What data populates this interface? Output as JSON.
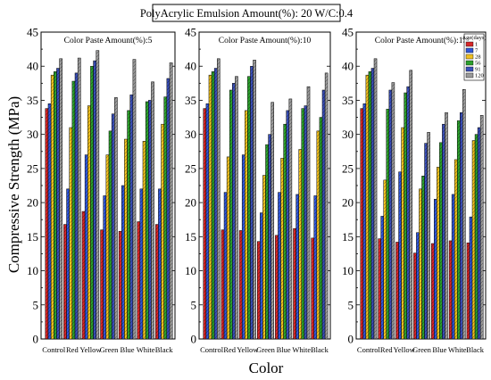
{
  "title": "PolyAcrylic Emulsion Amount(%):  20  W/C:0.4",
  "ylabel": "Compressive Strength (MPa)",
  "xlabel": "Color",
  "legend_title": "Age(days)",
  "colors": {
    "1": "#d62728",
    "7": "#2f56d8",
    "28": "#f0c020",
    "56": "#2ca02c",
    "91": "#3a4fb8",
    "120": "#9a9a9a"
  },
  "chart_data": [
    {
      "type": "bar",
      "title": "Color Paste Amount(%):5",
      "categories": [
        "Control",
        "Red",
        "Yellow",
        "Green",
        "Blue",
        "White",
        "Black"
      ],
      "ylim": [
        0,
        45
      ],
      "yticks": [
        0,
        5,
        10,
        15,
        20,
        25,
        30,
        35,
        40,
        45
      ],
      "series": [
        {
          "name": "1",
          "values": [
            33.8,
            16.8,
            18.7,
            16.0,
            15.8,
            17.2,
            16.8
          ]
        },
        {
          "name": "7",
          "values": [
            34.5,
            22.0,
            27.0,
            21.0,
            22.5,
            22.0,
            22.0
          ]
        },
        {
          "name": "28",
          "values": [
            38.7,
            31.0,
            34.2,
            27.0,
            29.3,
            29.0,
            31.5
          ]
        },
        {
          "name": "56",
          "values": [
            39.2,
            37.8,
            40.0,
            30.5,
            33.5,
            34.8,
            35.5
          ]
        },
        {
          "name": "91",
          "values": [
            39.7,
            39.0,
            40.8,
            33.0,
            35.8,
            35.0,
            38.2
          ]
        },
        {
          "name": "120",
          "values": [
            41.1,
            41.2,
            42.3,
            35.4,
            41.0,
            37.7,
            40.5
          ]
        }
      ]
    },
    {
      "type": "bar",
      "title": "Color Paste Amount(%):10",
      "categories": [
        "Control",
        "Red",
        "Yellow",
        "Green",
        "Blue",
        "White",
        "Black"
      ],
      "ylim": [
        0,
        45
      ],
      "yticks": [
        0,
        5,
        10,
        15,
        20,
        25,
        30,
        35,
        40,
        45
      ],
      "series": [
        {
          "name": "1",
          "values": [
            33.8,
            16.0,
            15.9,
            14.3,
            15.2,
            16.2,
            14.8
          ]
        },
        {
          "name": "7",
          "values": [
            34.5,
            21.5,
            27.0,
            18.5,
            21.5,
            21.2,
            21.0
          ]
        },
        {
          "name": "28",
          "values": [
            38.7,
            26.7,
            33.5,
            24.0,
            26.5,
            27.8,
            30.5
          ]
        },
        {
          "name": "56",
          "values": [
            39.2,
            36.5,
            38.5,
            28.5,
            31.5,
            33.8,
            32.5
          ]
        },
        {
          "name": "91",
          "values": [
            39.7,
            37.5,
            40.0,
            30.0,
            33.5,
            34.2,
            36.5
          ]
        },
        {
          "name": "120",
          "values": [
            41.1,
            38.5,
            40.9,
            34.7,
            35.2,
            37.0,
            39.0
          ]
        }
      ]
    },
    {
      "type": "bar",
      "title": "Color Paste Amount(%):15",
      "categories": [
        "Control",
        "Red",
        "Yellow",
        "Green",
        "Blue",
        "White",
        "Black"
      ],
      "ylim": [
        0,
        45
      ],
      "yticks": [
        0,
        5,
        10,
        15,
        20,
        25,
        30,
        35,
        40,
        45
      ],
      "legend_position": "top-right",
      "series": [
        {
          "name": "1",
          "values": [
            33.8,
            14.7,
            14.2,
            12.6,
            14.0,
            14.4,
            14.1
          ]
        },
        {
          "name": "7",
          "values": [
            34.5,
            18.0,
            24.5,
            15.6,
            20.5,
            21.2,
            17.9
          ]
        },
        {
          "name": "28",
          "values": [
            38.7,
            23.3,
            31.0,
            22.0,
            25.2,
            26.3,
            29.1
          ]
        },
        {
          "name": "56",
          "values": [
            39.2,
            33.7,
            36.1,
            23.9,
            28.8,
            32.0,
            30.0
          ]
        },
        {
          "name": "91",
          "values": [
            39.7,
            36.5,
            37.0,
            28.7,
            31.5,
            33.2,
            31.0
          ]
        },
        {
          "name": "120",
          "values": [
            41.1,
            37.6,
            39.4,
            30.3,
            33.2,
            36.6,
            32.8
          ]
        }
      ]
    }
  ]
}
